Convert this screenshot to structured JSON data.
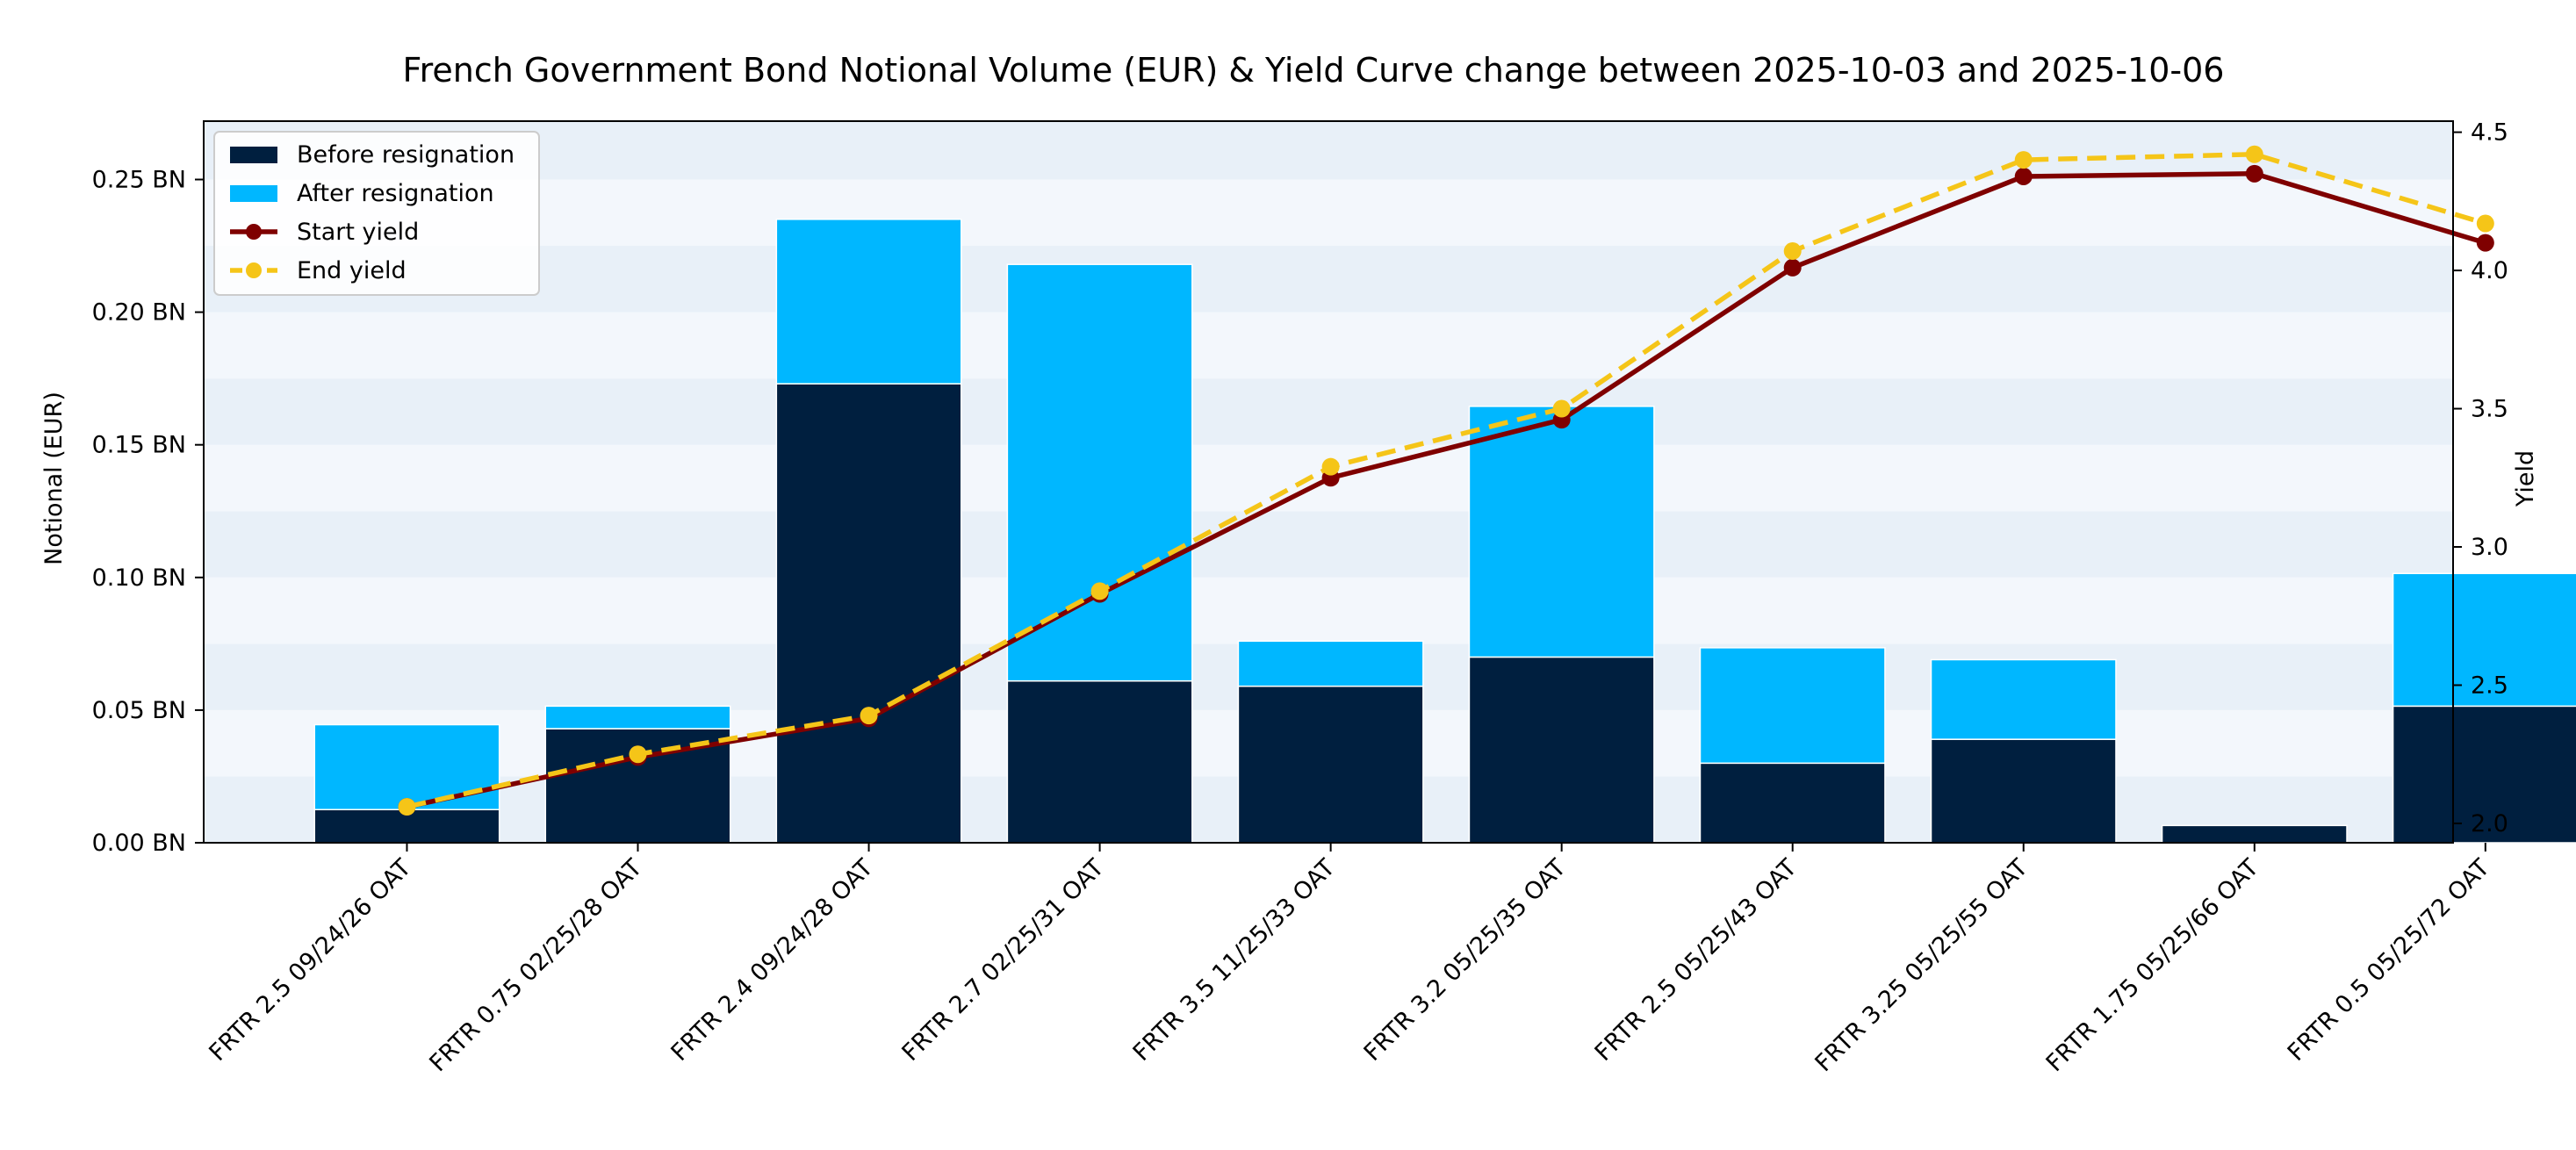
{
  "chart_data": {
    "type": "bar+line",
    "title": "French Government Bond Notional Volume (EUR) & Yield Curve change between 2025-10-03 and 2025-10-06",
    "ylabel_left": "Notional (EUR)",
    "ylabel_right": "Yield",
    "xlabel": "",
    "ylim_left": [
      0,
      0.272
    ],
    "ylim_right": [
      1.93,
      4.54
    ],
    "left_ticks": [
      {
        "value": 0.0,
        "label": "0.00 BN"
      },
      {
        "value": 0.05,
        "label": "0.05 BN"
      },
      {
        "value": 0.1,
        "label": "0.10 BN"
      },
      {
        "value": 0.15,
        "label": "0.15 BN"
      },
      {
        "value": 0.2,
        "label": "0.20 BN"
      },
      {
        "value": 0.25,
        "label": "0.25 BN"
      }
    ],
    "right_ticks": [
      {
        "value": 2.0,
        "label": "2.0"
      },
      {
        "value": 2.5,
        "label": "2.5"
      },
      {
        "value": 3.0,
        "label": "3.0"
      },
      {
        "value": 3.5,
        "label": "3.5"
      },
      {
        "value": 4.0,
        "label": "4.0"
      },
      {
        "value": 4.5,
        "label": "4.5"
      }
    ],
    "categories": [
      "FRTR 2.5 09/24/26 OAT",
      "FRTR 0.75 02/25/28 OAT",
      "FRTR 2.4 09/24/28 OAT",
      "FRTR 2.7 02/25/31 OAT",
      "FRTR 3.5 11/25/33 OAT",
      "FRTR 3.2 05/25/35 OAT",
      "FRTR 2.5 05/25/43 OAT",
      "FRTR 3.25 05/25/55 OAT",
      "FRTR 1.75 05/25/66 OAT",
      "FRTR 0.5 05/25/72 OAT"
    ],
    "bar_series": [
      {
        "name": "Before resignation",
        "color": "#001f3f",
        "values": [
          0.0125,
          0.043,
          0.173,
          0.061,
          0.059,
          0.07,
          0.03,
          0.039,
          0.0065,
          0.0515
        ]
      },
      {
        "name": "After resignation",
        "color": "#00b7ff",
        "values": [
          0.032,
          0.0085,
          0.062,
          0.157,
          0.017,
          0.0945,
          0.0435,
          0.03,
          0.0,
          0.05
        ]
      }
    ],
    "line_series": [
      {
        "name": "Start yield",
        "color": "#7f0000",
        "style": "solid",
        "values": [
          2.06,
          2.24,
          2.38,
          2.83,
          3.25,
          3.46,
          4.01,
          4.34,
          4.35,
          4.1
        ]
      },
      {
        "name": "End yield",
        "color": "#f5c518",
        "style": "dashed",
        "values": [
          2.06,
          2.25,
          2.39,
          2.84,
          3.29,
          3.5,
          4.07,
          4.4,
          4.42,
          4.17
        ]
      }
    ],
    "band_colors": [
      "#e8f0f8",
      "#f3f7fc"
    ],
    "legend_position": "upper-left",
    "grid": false
  }
}
